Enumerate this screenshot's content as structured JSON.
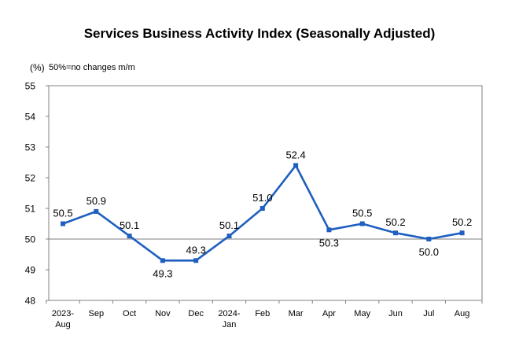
{
  "chart_data": {
    "type": "line",
    "title": "Services Business Activity Index (Seasonally Adjusted)",
    "unit_label": "(%)",
    "annotation": "50%=no changes m/m",
    "categories": [
      [
        "2023-",
        "Aug"
      ],
      [
        "Sep"
      ],
      [
        "Oct"
      ],
      [
        "Nov"
      ],
      [
        "Dec"
      ],
      [
        "2024-",
        "Jan"
      ],
      [
        "Feb"
      ],
      [
        "Mar"
      ],
      [
        "Apr"
      ],
      [
        "May"
      ],
      [
        "Jun"
      ],
      [
        "Jul"
      ],
      [
        "Aug"
      ]
    ],
    "series": [
      {
        "values": [
          50.5,
          50.9,
          50.1,
          49.3,
          49.3,
          50.1,
          51.0,
          52.4,
          50.3,
          50.5,
          50.2,
          50.0,
          50.2
        ],
        "labels": [
          "50.5",
          "50.9",
          "50.1",
          "49.3",
          "49.3",
          "50.1",
          "51.0",
          "52.4",
          "50.3",
          "50.5",
          "50.2",
          "50.0",
          "50.2"
        ],
        "color": "#1f5fbf"
      }
    ],
    "y_ticks": [
      "48",
      "49",
      "50",
      "51",
      "52",
      "53",
      "54",
      "55"
    ],
    "ylim": [
      48,
      55
    ],
    "reference_line": 50,
    "grid": false,
    "legend": "none"
  }
}
